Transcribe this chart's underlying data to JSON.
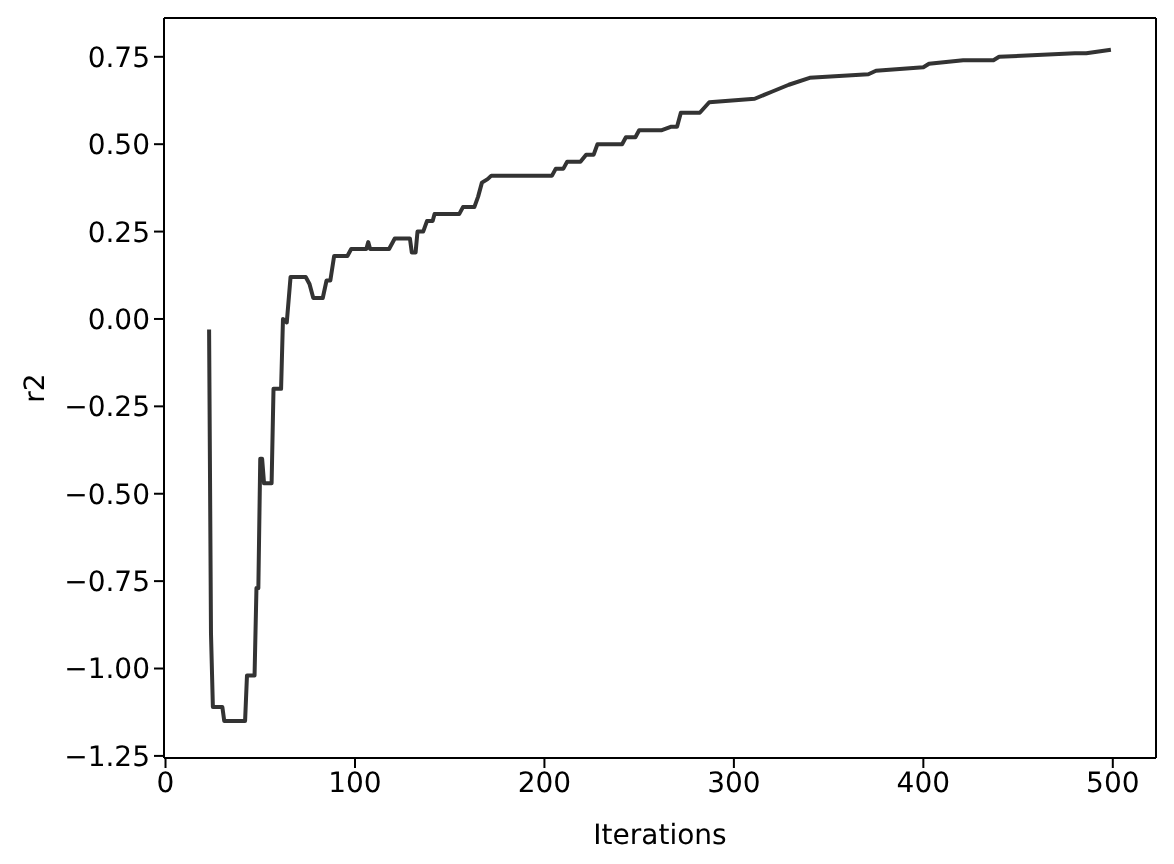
{
  "chart_data": {
    "type": "line",
    "xlabel": "Iterations",
    "ylabel": "r2",
    "x": [
      23,
      24,
      25,
      30,
      31,
      42,
      43,
      47,
      48,
      49,
      50,
      51,
      52,
      56,
      57,
      61,
      62,
      64,
      66,
      74,
      76,
      78,
      83,
      85,
      87,
      89,
      96,
      98,
      106,
      107,
      108,
      118,
      121,
      129,
      130,
      132,
      133,
      136,
      138,
      141,
      142,
      155,
      157,
      163,
      165,
      167,
      170,
      172,
      204,
      206,
      210,
      212,
      219,
      222,
      226,
      228,
      241,
      243,
      248,
      250,
      262,
      267,
      270,
      272,
      282,
      287,
      311,
      320,
      329,
      340,
      371,
      375,
      400,
      403,
      421,
      437,
      440,
      480,
      486,
      499
    ],
    "series": [
      {
        "color": "#333333",
        "values": [
          -0.03,
          -0.9,
          -1.11,
          -1.11,
          -1.15,
          -1.15,
          -1.02,
          -1.02,
          -0.77,
          -0.77,
          -0.4,
          -0.4,
          -0.47,
          -0.47,
          -0.2,
          -0.2,
          0.0,
          -0.01,
          0.12,
          0.12,
          0.1,
          0.06,
          0.06,
          0.11,
          0.11,
          0.18,
          0.18,
          0.2,
          0.2,
          0.22,
          0.2,
          0.2,
          0.23,
          0.23,
          0.19,
          0.19,
          0.25,
          0.25,
          0.28,
          0.28,
          0.3,
          0.3,
          0.32,
          0.32,
          0.35,
          0.39,
          0.4,
          0.41,
          0.41,
          0.43,
          0.43,
          0.45,
          0.45,
          0.47,
          0.47,
          0.5,
          0.5,
          0.52,
          0.52,
          0.54,
          0.54,
          0.55,
          0.55,
          0.59,
          0.59,
          0.62,
          0.63,
          0.65,
          0.67,
          0.69,
          0.7,
          0.71,
          0.72,
          0.73,
          0.74,
          0.74,
          0.75,
          0.76,
          0.76,
          0.77
        ]
      }
    ],
    "xlim": [
      -0.8,
      522.8
    ],
    "xticks": [
      0,
      100,
      200,
      300,
      400,
      500
    ],
    "ylim": [
      -1.256,
      0.861
    ],
    "yticks": [
      {
        "value": 0.75,
        "label": "0.75"
      },
      {
        "value": 0.5,
        "label": "0.50"
      },
      {
        "value": 0.25,
        "label": "0.25"
      },
      {
        "value": 0,
        "label": "0.00"
      },
      {
        "value": -0.25,
        "label": "−0.25"
      },
      {
        "value": -0.5,
        "label": "−0.50"
      },
      {
        "value": -0.75,
        "label": "−0.75"
      },
      {
        "value": -1,
        "label": "−1.00"
      },
      {
        "value": -1.25,
        "label": "−1.25"
      }
    ]
  }
}
